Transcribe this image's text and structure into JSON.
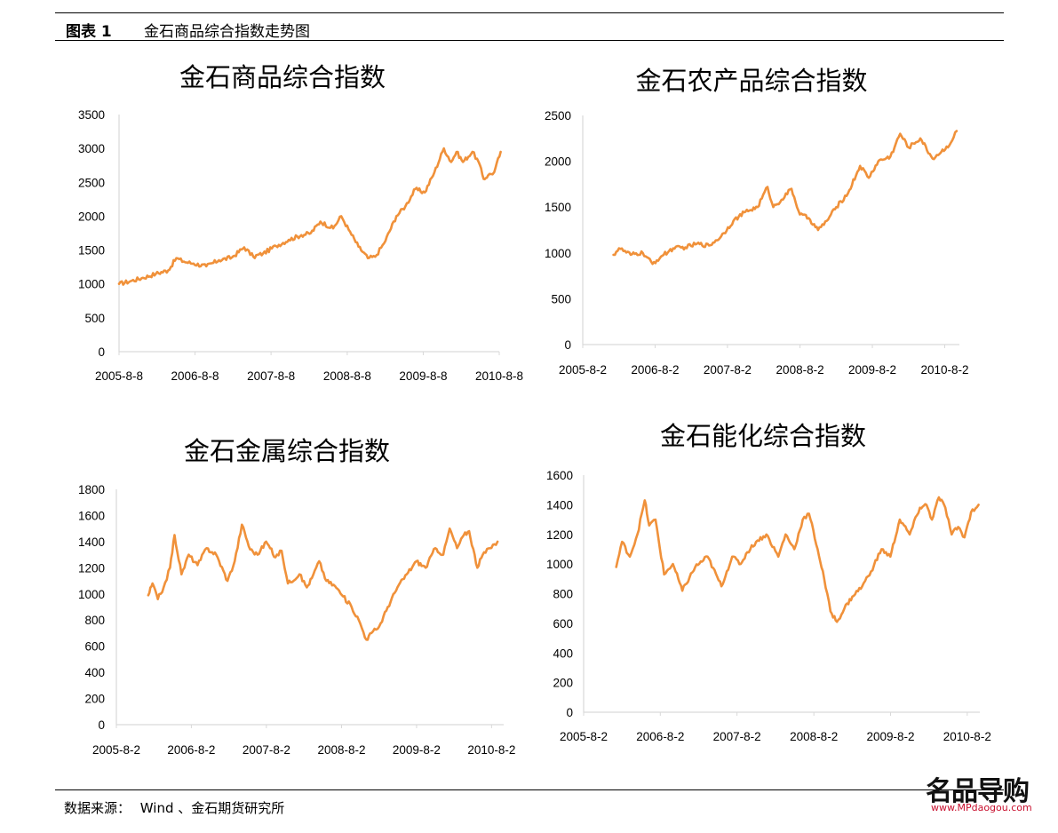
{
  "header": {
    "figure_label": "图表 1",
    "figure_title": "金石商品综合指数走势图"
  },
  "footer": {
    "source_label": "数据来源：",
    "source_text": "Wind 、金石期货研究所"
  },
  "watermark": {
    "text": "名品导购",
    "url": "www.MPdaogou.com"
  },
  "line_color": "#f0913a",
  "chart_data": [
    {
      "type": "line",
      "title": "金石商品综合指数",
      "xlabel": "",
      "ylabel": "",
      "ylim": [
        0,
        3500
      ],
      "yticks": [
        0,
        500,
        1000,
        1500,
        2000,
        2500,
        3000,
        3500
      ],
      "xticks": [
        "2005-8-8",
        "2006-8-8",
        "2007-8-8",
        "2008-8-8",
        "2009-8-8",
        "2010-8-8"
      ],
      "xtick_dates": [
        "2005-08-08",
        "2006-08-08",
        "2007-08-08",
        "2008-08-08",
        "2009-08-08",
        "2010-08-08"
      ],
      "xlim": [
        "2005-08-08",
        "2010-08-08"
      ],
      "grid": false,
      "legend": "none",
      "series": [
        {
          "x": [
            "2005-08-08",
            "2005-10-01",
            "2005-12-01",
            "2006-02-01",
            "2006-04-01",
            "2006-05-10",
            "2006-06-15",
            "2006-08-01",
            "2006-10-01",
            "2006-12-01",
            "2007-02-01",
            "2007-04-01",
            "2007-05-15",
            "2007-07-01",
            "2007-09-01",
            "2007-11-01",
            "2008-01-01",
            "2008-02-15",
            "2008-04-01",
            "2008-06-01",
            "2008-07-10",
            "2008-08-15",
            "2008-10-01",
            "2008-11-15",
            "2008-12-20",
            "2009-02-01",
            "2009-04-01",
            "2009-05-15",
            "2009-07-01",
            "2009-08-15",
            "2009-10-01",
            "2009-11-15",
            "2009-12-20",
            "2010-01-15",
            "2010-02-15",
            "2010-04-01",
            "2010-05-01",
            "2010-05-25",
            "2010-06-15",
            "2010-07-15",
            "2010-08-15"
          ],
          "values": [
            1000,
            1040,
            1090,
            1150,
            1200,
            1380,
            1330,
            1300,
            1260,
            1350,
            1390,
            1540,
            1400,
            1450,
            1560,
            1650,
            1720,
            1750,
            1920,
            1820,
            2000,
            1800,
            1550,
            1380,
            1400,
            1600,
            2000,
            2150,
            2400,
            2350,
            2650,
            3000,
            2800,
            2950,
            2800,
            2950,
            2800,
            2550,
            2600,
            2650,
            2950
          ]
        }
      ]
    },
    {
      "type": "line",
      "title": "金石农产品综合指数",
      "xlabel": "",
      "ylabel": "",
      "ylim": [
        0,
        2500
      ],
      "yticks": [
        0,
        500,
        1000,
        1500,
        2000,
        2500
      ],
      "xticks": [
        "2005-8-2",
        "2006-8-2",
        "2007-8-2",
        "2008-8-2",
        "2009-8-2",
        "2010-8-2"
      ],
      "xtick_dates": [
        "2005-08-02",
        "2006-08-02",
        "2007-08-02",
        "2008-08-02",
        "2009-08-02",
        "2010-08-02"
      ],
      "xlim": [
        "2005-08-02",
        "2010-10-15"
      ],
      "grid": false,
      "legend": "none",
      "series": [
        {
          "x": [
            "2006-01-04",
            "2006-02-01",
            "2006-04-01",
            "2006-06-01",
            "2006-07-20",
            "2006-09-01",
            "2006-11-01",
            "2007-01-01",
            "2007-03-01",
            "2007-05-01",
            "2007-07-01",
            "2007-09-01",
            "2007-11-01",
            "2008-01-01",
            "2008-02-20",
            "2008-03-20",
            "2008-05-01",
            "2008-06-20",
            "2008-08-01",
            "2008-09-15",
            "2008-11-01",
            "2008-12-15",
            "2009-02-01",
            "2009-04-01",
            "2009-06-01",
            "2009-07-15",
            "2009-09-01",
            "2009-11-01",
            "2009-12-20",
            "2010-02-01",
            "2010-04-01",
            "2010-06-01",
            "2010-07-15",
            "2010-09-01",
            "2010-10-01"
          ],
          "values": [
            980,
            1050,
            980,
            1000,
            880,
            960,
            1050,
            1060,
            1100,
            1080,
            1180,
            1350,
            1450,
            1500,
            1720,
            1500,
            1580,
            1700,
            1420,
            1380,
            1250,
            1350,
            1500,
            1650,
            1950,
            1820,
            2000,
            2050,
            2300,
            2150,
            2250,
            2030,
            2100,
            2200,
            2330
          ]
        }
      ]
    },
    {
      "type": "line",
      "title": "金石金属综合指数",
      "xlabel": "",
      "ylabel": "",
      "ylim": [
        0,
        1800
      ],
      "yticks": [
        0,
        200,
        400,
        600,
        800,
        1000,
        1200,
        1400,
        1600,
        1800
      ],
      "xticks": [
        "2005-8-2",
        "2006-8-2",
        "2007-8-2",
        "2008-8-2",
        "2009-8-2",
        "2010-8-2"
      ],
      "xtick_dates": [
        "2005-08-02",
        "2006-08-02",
        "2007-08-02",
        "2008-08-02",
        "2009-08-02",
        "2010-08-02"
      ],
      "xlim": [
        "2005-08-02",
        "2010-09-30"
      ],
      "grid": false,
      "legend": "none",
      "series": [
        {
          "x": [
            "2006-01-04",
            "2006-01-25",
            "2006-02-20",
            "2006-03-20",
            "2006-04-20",
            "2006-05-12",
            "2006-06-15",
            "2006-07-20",
            "2006-09-01",
            "2006-10-15",
            "2006-12-01",
            "2007-01-25",
            "2007-03-01",
            "2007-04-05",
            "2007-05-15",
            "2007-06-20",
            "2007-08-01",
            "2007-09-15",
            "2007-10-15",
            "2007-11-15",
            "2008-01-10",
            "2008-02-15",
            "2008-03-10",
            "2008-04-15",
            "2008-05-20",
            "2008-07-01",
            "2008-08-10",
            "2008-09-20",
            "2008-10-25",
            "2008-12-01",
            "2008-12-25",
            "2009-02-01",
            "2009-03-15",
            "2009-05-01",
            "2009-06-15",
            "2009-08-01",
            "2009-09-15",
            "2009-11-01",
            "2009-12-10",
            "2010-01-10",
            "2010-02-15",
            "2010-03-20",
            "2010-04-15",
            "2010-05-25",
            "2010-06-20",
            "2010-07-25",
            "2010-08-31"
          ],
          "values": [
            990,
            1080,
            960,
            1050,
            1200,
            1450,
            1150,
            1300,
            1220,
            1350,
            1300,
            1100,
            1250,
            1530,
            1340,
            1300,
            1400,
            1280,
            1330,
            1080,
            1150,
            1050,
            1120,
            1250,
            1100,
            1060,
            980,
            900,
            800,
            650,
            700,
            750,
            900,
            1050,
            1150,
            1250,
            1200,
            1350,
            1300,
            1500,
            1350,
            1450,
            1480,
            1200,
            1300,
            1350,
            1400
          ]
        }
      ]
    },
    {
      "type": "line",
      "title": "金石能化综合指数",
      "xlabel": "",
      "ylabel": "",
      "ylim": [
        0,
        1600
      ],
      "yticks": [
        0,
        200,
        400,
        600,
        800,
        1000,
        1200,
        1400,
        1600
      ],
      "xticks": [
        "2005-8-2",
        "2006-8-2",
        "2007-8-2",
        "2008-8-2",
        "2009-8-2",
        "2010-8-2"
      ],
      "xtick_dates": [
        "2005-08-02",
        "2006-08-02",
        "2007-08-02",
        "2008-08-02",
        "2009-08-02",
        "2010-08-02"
      ],
      "xlim": [
        "2005-08-02",
        "2010-10-01"
      ],
      "grid": false,
      "legend": "none",
      "series": [
        {
          "x": [
            "2006-01-04",
            "2006-02-01",
            "2006-03-10",
            "2006-04-15",
            "2006-05-20",
            "2006-06-10",
            "2006-07-10",
            "2006-08-20",
            "2006-10-01",
            "2006-11-15",
            "2007-01-15",
            "2007-03-15",
            "2007-05-20",
            "2007-07-10",
            "2007-08-20",
            "2007-09-20",
            "2007-11-01",
            "2007-12-20",
            "2008-02-15",
            "2008-03-20",
            "2008-05-01",
            "2008-06-10",
            "2008-07-10",
            "2008-08-20",
            "2008-09-20",
            "2008-10-20",
            "2008-11-20",
            "2008-12-25",
            "2009-02-01",
            "2009-03-20",
            "2009-05-01",
            "2009-06-20",
            "2009-08-01",
            "2009-09-15",
            "2009-11-01",
            "2009-12-20",
            "2010-01-20",
            "2010-02-15",
            "2010-03-20",
            "2010-04-20",
            "2010-05-20",
            "2010-06-20",
            "2010-07-20",
            "2010-08-20",
            "2010-09-25"
          ],
          "values": [
            980,
            1150,
            1050,
            1200,
            1430,
            1260,
            1300,
            930,
            1000,
            820,
            980,
            1050,
            850,
            1050,
            1000,
            1080,
            1150,
            1200,
            1050,
            1200,
            1100,
            1300,
            1340,
            1100,
            900,
            680,
            610,
            700,
            780,
            850,
            950,
            1100,
            1050,
            1300,
            1200,
            1380,
            1400,
            1300,
            1450,
            1380,
            1200,
            1250,
            1180,
            1350,
            1400
          ]
        }
      ]
    }
  ]
}
